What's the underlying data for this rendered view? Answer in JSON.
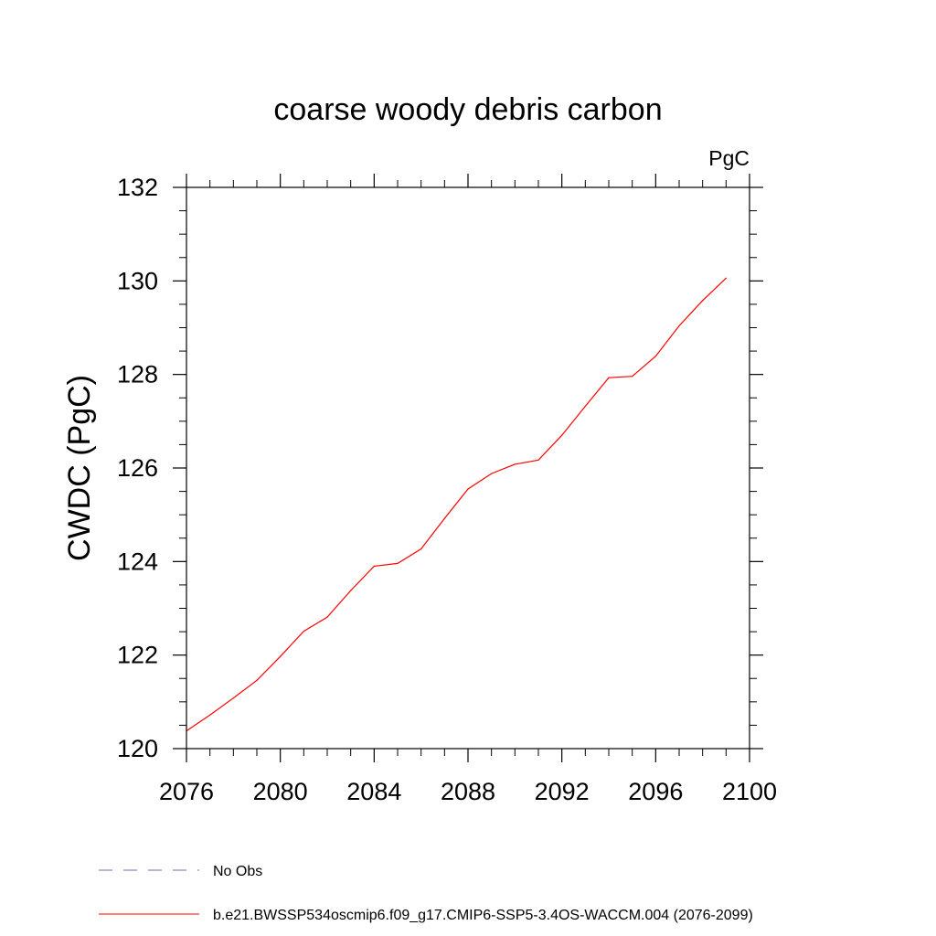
{
  "chart_data": {
    "type": "line",
    "title": "coarse woody debris carbon",
    "units_label": "PgC",
    "ylabel": "CWDC  (PgC)",
    "xlabel": "",
    "xlim": [
      2076,
      2100
    ],
    "ylim": [
      120,
      132
    ],
    "x_ticks": [
      2076,
      2080,
      2084,
      2088,
      2092,
      2096,
      2100
    ],
    "y_ticks": [
      120,
      122,
      124,
      126,
      128,
      130,
      132
    ],
    "legend_position": "bottom-left",
    "series": [
      {
        "name": "No Obs",
        "color": "#7b68ae",
        "style": "dashed",
        "x": [],
        "y": []
      },
      {
        "name": "b.e21.BWSSP534oscmip6.f09_g17.CMIP6-SSP5-3.4OS-WACCM.004 (2076-2099)",
        "color": "#ff0000",
        "style": "solid",
        "x": [
          2076,
          2077,
          2078,
          2079,
          2080,
          2081,
          2082,
          2083,
          2084,
          2085,
          2086,
          2087,
          2088,
          2089,
          2090,
          2091,
          2092,
          2093,
          2094,
          2095,
          2096,
          2097,
          2098,
          2099
        ],
        "y": [
          120.38,
          120.72,
          121.08,
          121.46,
          121.97,
          122.51,
          122.81,
          123.38,
          123.9,
          123.96,
          124.27,
          124.92,
          125.55,
          125.88,
          126.08,
          126.17,
          126.7,
          127.32,
          127.93,
          127.96,
          128.39,
          129.04,
          129.58,
          130.06
        ]
      }
    ]
  }
}
